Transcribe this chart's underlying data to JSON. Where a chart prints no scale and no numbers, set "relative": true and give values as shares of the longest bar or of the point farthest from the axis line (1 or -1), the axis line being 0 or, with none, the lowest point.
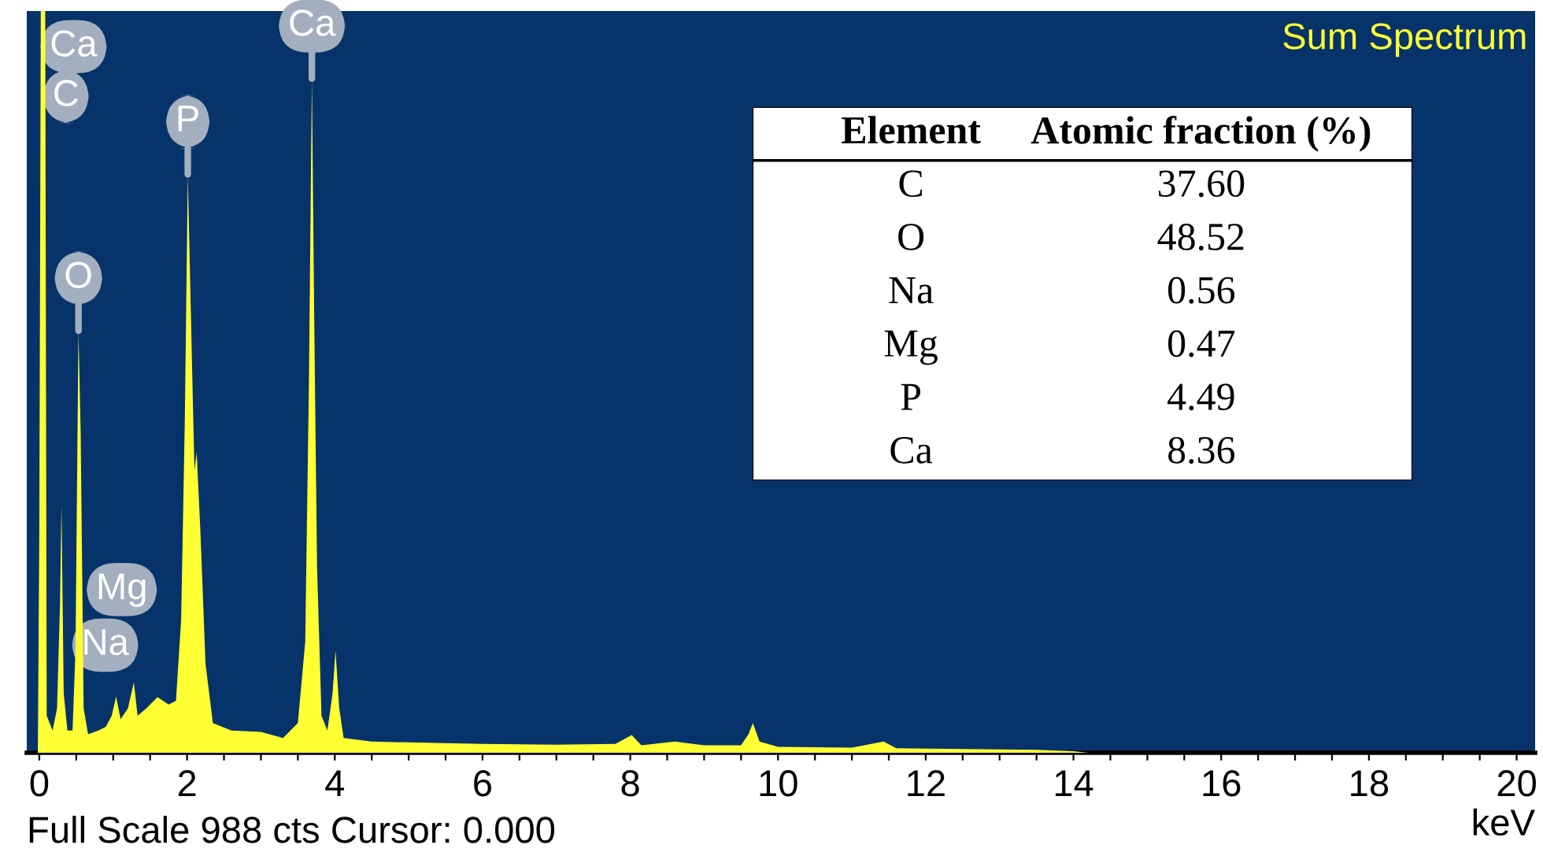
{
  "chart_data": [
    {
      "type": "area",
      "xlabel": "keV",
      "relative": true,
      "x": [
        -0.02,
        0.0,
        0.02,
        0.08,
        0.1,
        0.18,
        0.24,
        0.28,
        0.3,
        0.33,
        0.38,
        0.45,
        0.49,
        0.53,
        0.56,
        0.6,
        0.66,
        0.8,
        0.9,
        0.98,
        1.04,
        1.1,
        1.2,
        1.28,
        1.33,
        1.45,
        1.6,
        1.75,
        1.85,
        1.92,
        1.97,
        2.01,
        2.05,
        2.1,
        2.13,
        2.18,
        2.25,
        2.35,
        2.6,
        3.0,
        3.3,
        3.5,
        3.6,
        3.65,
        3.69,
        3.72,
        3.76,
        3.82,
        3.9,
        3.97,
        4.01,
        4.06,
        4.12,
        4.5,
        5.0,
        6.0,
        7.0,
        7.8,
        8.02,
        8.15,
        8.6,
        9.0,
        9.5,
        9.6,
        9.66,
        9.75,
        10.0,
        11.0,
        11.43,
        11.6,
        12.5,
        13.5,
        14.0,
        14.2,
        20
      ],
      "series": [
        {
          "color": "#ffff33",
          "values": [
            0,
            0.3,
            1,
            1,
            0.05,
            0.03,
            0.06,
            0.2,
            0.335,
            0.08,
            0.03,
            0.03,
            0.14,
            0.569,
            0.43,
            0.06,
            0.025,
            0.03,
            0.035,
            0.05,
            0.076,
            0.045,
            0.06,
            0.095,
            0.05,
            0.06,
            0.075,
            0.065,
            0.07,
            0.18,
            0.45,
            0.78,
            0.6,
            0.38,
            0.405,
            0.3,
            0.12,
            0.04,
            0.03,
            0.028,
            0.02,
            0.04,
            0.15,
            0.5,
            0.909,
            0.6,
            0.25,
            0.05,
            0.03,
            0.08,
            0.138,
            0.06,
            0.02,
            0.015,
            0.014,
            0.012,
            0.011,
            0.012,
            0.024,
            0.01,
            0.015,
            0.01,
            0.01,
            0.025,
            0.04,
            0.015,
            0.008,
            0.007,
            0.015,
            0.006,
            0.005,
            0.004,
            0.002,
            0,
            0
          ]
        }
      ],
      "xlim": [
        -0.17,
        20.25
      ],
      "xticks": [
        {
          "value": 0,
          "label": "0"
        },
        {
          "value": 0.5,
          "label": null
        },
        {
          "value": 1,
          "label": null
        },
        {
          "value": 1.5,
          "label": null
        },
        {
          "value": 2,
          "label": "2"
        },
        {
          "value": 2.5,
          "label": null
        },
        {
          "value": 3,
          "label": null
        },
        {
          "value": 3.5,
          "label": null
        },
        {
          "value": 4,
          "label": "4"
        },
        {
          "value": 4.5,
          "label": null
        },
        {
          "value": 5,
          "label": null
        },
        {
          "value": 5.5,
          "label": null
        },
        {
          "value": 6,
          "label": "6"
        },
        {
          "value": 6.5,
          "label": null
        },
        {
          "value": 7,
          "label": null
        },
        {
          "value": 7.5,
          "label": null
        },
        {
          "value": 8,
          "label": "8"
        },
        {
          "value": 8.5,
          "label": null
        },
        {
          "value": 9,
          "label": null
        },
        {
          "value": 9.5,
          "label": null
        },
        {
          "value": 10,
          "label": "10"
        },
        {
          "value": 10.5,
          "label": null
        },
        {
          "value": 11,
          "label": null
        },
        {
          "value": 11.5,
          "label": null
        },
        {
          "value": 12,
          "label": "12"
        },
        {
          "value": 12.5,
          "label": null
        },
        {
          "value": 13,
          "label": null
        },
        {
          "value": 13.5,
          "label": null
        },
        {
          "value": 14,
          "label": "14"
        },
        {
          "value": 14.5,
          "label": null
        },
        {
          "value": 15,
          "label": null
        },
        {
          "value": 15.5,
          "label": null
        },
        {
          "value": 16,
          "label": "16"
        },
        {
          "value": 16.5,
          "label": null
        },
        {
          "value": 17,
          "label": null
        },
        {
          "value": 17.5,
          "label": null
        },
        {
          "value": 18,
          "label": "18"
        },
        {
          "value": 18.5,
          "label": null
        },
        {
          "value": 19,
          "label": null
        },
        {
          "value": 19.5,
          "label": null
        },
        {
          "value": 20,
          "label": "20"
        }
      ],
      "tick_labels": "x",
      "grid": false,
      "legend": false,
      "annotations": [
        "Sum Spectrum",
        "Full Scale 988 cts Cursor: 0.000",
        "Ca",
        "C",
        {
          "text": "P",
          "x": 2.01,
          "y": 0.78
        },
        {
          "text": "O",
          "x": 0.53,
          "y": 0.569
        },
        "Mg",
        "Na",
        {
          "text": "Ca",
          "x": 3.69,
          "y": 0.909
        }
      ]
    },
    {
      "type": "other",
      "xlabel": "Element",
      "ylabel": "Atomic fraction (%)",
      "categories": [
        "C",
        "O",
        "Na",
        "Mg",
        "P",
        "Ca"
      ],
      "value_labels": [
        "37.60",
        "48.52",
        "0.56",
        "0.47",
        "4.49",
        "8.36"
      ]
    }
  ]
}
